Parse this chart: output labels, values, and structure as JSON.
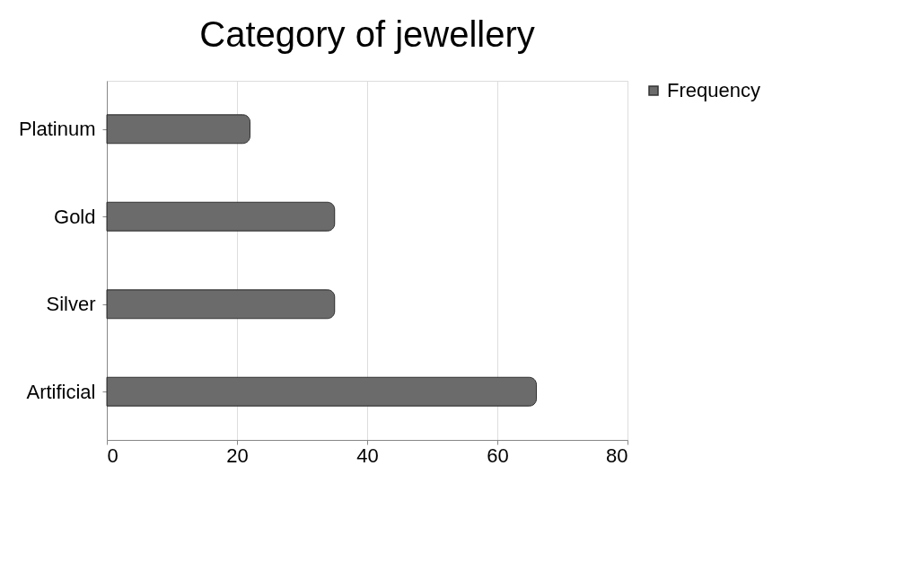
{
  "chart_data": {
    "type": "bar",
    "orientation": "horizontal",
    "title": "Category of jewellery",
    "categories": [
      "Platinum",
      "Gold",
      "Silver",
      "Artificial"
    ],
    "series": [
      {
        "name": "Frequency",
        "color": "#6b6b6b",
        "values": [
          22,
          35,
          35,
          66
        ]
      }
    ],
    "xlim": [
      0,
      80
    ],
    "xticks": [
      0,
      20,
      40,
      60,
      80
    ],
    "grid": "x",
    "legend": "right"
  }
}
